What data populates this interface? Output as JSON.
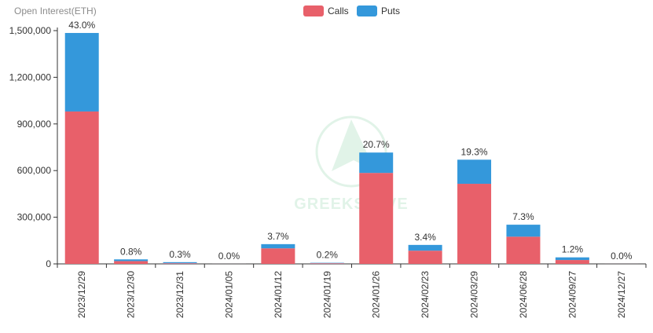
{
  "chart_data": {
    "type": "bar",
    "stacked": true,
    "ylabel": "Open Interest(ETH)",
    "ylim": [
      0,
      1500000
    ],
    "yticks": [
      0,
      300000,
      600000,
      900000,
      1200000,
      1500000
    ],
    "ytick_labels": [
      "0",
      "300,000",
      "600,000",
      "900,000",
      "1,200,000",
      "1,500,000"
    ],
    "categories": [
      "2023/12/29",
      "2023/12/30",
      "2023/12/31",
      "2024/01/05",
      "2024/01/12",
      "2024/01/19",
      "2024/01/26",
      "2024/02/23",
      "2024/03/29",
      "2024/06/28",
      "2024/09/27",
      "2024/12/27"
    ],
    "series": [
      {
        "name": "Calls",
        "color": "#e8606a",
        "values": [
          980000,
          18000,
          4000,
          300,
          100000,
          4000,
          585000,
          85000,
          515000,
          175000,
          25000,
          200
        ]
      },
      {
        "name": "Puts",
        "color": "#3498db",
        "values": [
          505000,
          11000,
          7000,
          200,
          27000,
          3000,
          131000,
          37000,
          155000,
          77000,
          17000,
          100
        ]
      }
    ],
    "bar_labels": [
      "43.0%",
      "0.8%",
      "0.3%",
      "0.0%",
      "3.7%",
      "0.2%",
      "20.7%",
      "3.4%",
      "19.3%",
      "7.3%",
      "1.2%",
      "0.0%"
    ],
    "legend": {
      "placement": "top-center"
    },
    "grid": false
  },
  "watermark": {
    "text": "GREEKS.LIVE",
    "color": "#c9ead6"
  }
}
